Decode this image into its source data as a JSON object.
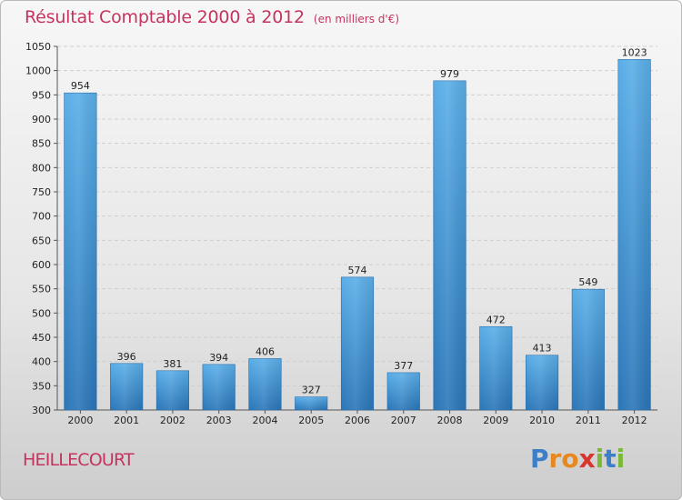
{
  "page": {
    "title": "Résultat Comptable 2000 à 2012",
    "subtitle": "(en milliers d'€)",
    "commune": "HEILLECOURT",
    "logo": {
      "text": "Proxiti",
      "letters": [
        {
          "ch": "P",
          "color": "#3a7fc8"
        },
        {
          "ch": "r",
          "color": "#e8871e"
        },
        {
          "ch": "o",
          "color": "#e8871e"
        },
        {
          "ch": "x",
          "color": "#d8352f"
        },
        {
          "ch": "i",
          "color": "#7ab835"
        },
        {
          "ch": "t",
          "color": "#3a7fc8"
        },
        {
          "ch": "i",
          "color": "#7ab835"
        }
      ]
    }
  },
  "chart_data": {
    "type": "bar",
    "title": "Résultat Comptable 2000 à 2012",
    "subtitle": "(en milliers d'€)",
    "categories": [
      "2000",
      "2001",
      "2002",
      "2003",
      "2004",
      "2005",
      "2006",
      "2007",
      "2008",
      "2009",
      "2010",
      "2011",
      "2012"
    ],
    "values": [
      954,
      396,
      381,
      394,
      406,
      327,
      574,
      377,
      979,
      472,
      413,
      549,
      1023
    ],
    "ylim": [
      300,
      1050
    ],
    "yticks": [
      300,
      350,
      400,
      450,
      500,
      550,
      600,
      650,
      700,
      750,
      800,
      850,
      900,
      950,
      1000,
      1050
    ],
    "grid": true,
    "bar_color_top": "#5aaee8",
    "bar_color_bottom": "#2a76b8"
  }
}
